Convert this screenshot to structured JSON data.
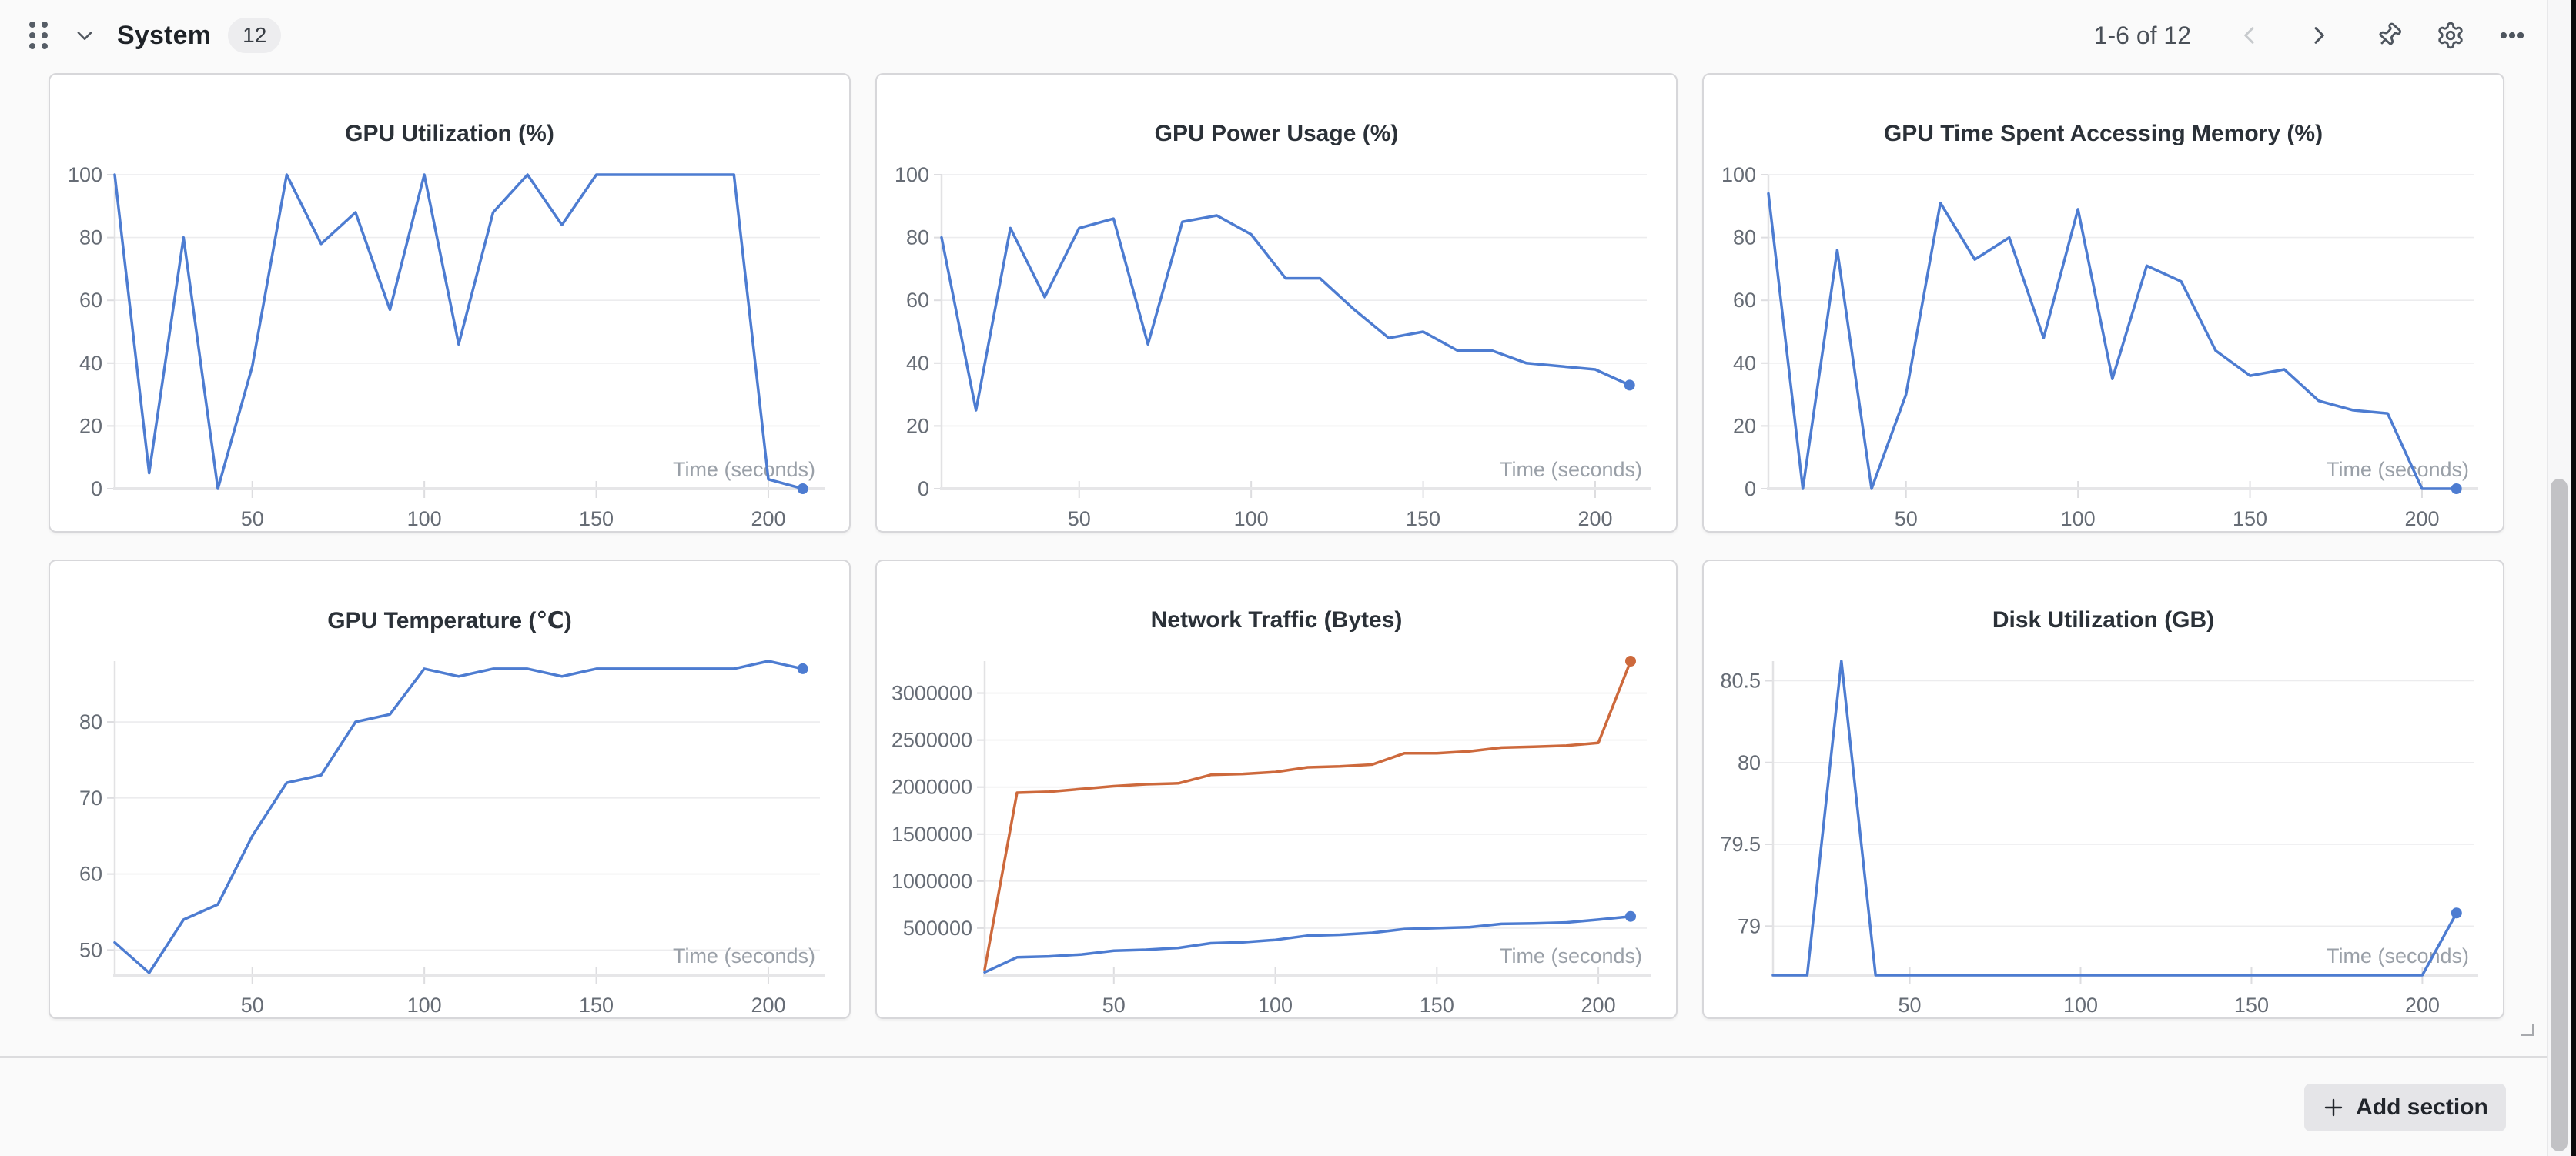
{
  "header": {
    "title": "System",
    "badge_count": "12",
    "pagination": "1-6 of 12"
  },
  "footer": {
    "add_section_label": "Add section"
  },
  "icons": {
    "drag_handle": "grip-vertical",
    "collapse": "chevron-down",
    "prev": "chevron-left",
    "next": "chevron-right",
    "pin": "pushpin",
    "settings": "gear",
    "more": "ellipsis-horizontal",
    "add": "plus",
    "resize": "corner-resize"
  },
  "colors": {
    "page_bg": "#fafafa",
    "card_bg": "#ffffff",
    "card_border": "#d7d7da",
    "accent_blue": "#4d7cd1",
    "accent_orange": "#cd693c",
    "grid_line": "#ececee",
    "tick_label": "#666c75",
    "axis_label": "#9aa0a8",
    "icon_gray": "#4e555e",
    "disabled_gray": "#c7cacd"
  },
  "chart_data": [
    {
      "type": "line",
      "title": "GPU Utilization (%)",
      "xlabel": "Time (seconds)",
      "x": [
        10,
        20,
        30,
        40,
        50,
        60,
        70,
        80,
        90,
        100,
        110,
        120,
        130,
        140,
        150,
        160,
        170,
        180,
        190,
        200,
        210
      ],
      "xticks": [
        50,
        100,
        150,
        200
      ],
      "yticks": [
        0,
        20,
        40,
        60,
        80,
        100
      ],
      "xlim": [
        10,
        215
      ],
      "ylim": [
        0,
        100
      ],
      "margin_left": 84,
      "series": [
        {
          "color": "#4d7cd1",
          "values": [
            100,
            5,
            80,
            0,
            39,
            100,
            78,
            88,
            57,
            100,
            46,
            88,
            100,
            84,
            100,
            100,
            100,
            100,
            100,
            3,
            0
          ]
        }
      ]
    },
    {
      "type": "line",
      "title": "GPU Power Usage (%)",
      "xlabel": "Time (seconds)",
      "x": [
        10,
        20,
        30,
        40,
        50,
        60,
        70,
        80,
        90,
        100,
        110,
        120,
        130,
        140,
        150,
        160,
        170,
        180,
        190,
        200,
        210
      ],
      "xticks": [
        50,
        100,
        150,
        200
      ],
      "yticks": [
        0,
        20,
        40,
        60,
        80,
        100
      ],
      "xlim": [
        10,
        215
      ],
      "ylim": [
        0,
        100
      ],
      "margin_left": 84,
      "series": [
        {
          "color": "#4d7cd1",
          "values": [
            80,
            25,
            83,
            61,
            83,
            86,
            46,
            85,
            87,
            81,
            67,
            67,
            57,
            48,
            50,
            44,
            44,
            40,
            39,
            38,
            33
          ]
        }
      ]
    },
    {
      "type": "line",
      "title": "GPU Time Spent Accessing Memory (%)",
      "xlabel": "Time (seconds)",
      "x": [
        10,
        20,
        30,
        40,
        50,
        60,
        70,
        80,
        90,
        100,
        110,
        120,
        130,
        140,
        150,
        160,
        170,
        180,
        190,
        200,
        210
      ],
      "xticks": [
        50,
        100,
        150,
        200
      ],
      "yticks": [
        0,
        20,
        40,
        60,
        80,
        100
      ],
      "xlim": [
        10,
        215
      ],
      "ylim": [
        0,
        100
      ],
      "margin_left": 84,
      "series": [
        {
          "color": "#4d7cd1",
          "values": [
            94,
            0,
            76,
            0,
            30,
            91,
            73,
            80,
            48,
            89,
            35,
            71,
            66,
            44,
            36,
            38,
            28,
            25,
            24,
            0,
            0
          ]
        }
      ]
    },
    {
      "type": "line",
      "title": "GPU Temperature (℃)",
      "xlabel": "Time (seconds)",
      "x": [
        10,
        20,
        30,
        40,
        50,
        60,
        70,
        80,
        90,
        100,
        110,
        120,
        130,
        140,
        150,
        160,
        170,
        180,
        190,
        200,
        210
      ],
      "xticks": [
        50,
        100,
        150,
        200
      ],
      "yticks": [
        50,
        60,
        70,
        80
      ],
      "xlim": [
        10,
        215
      ],
      "ylim": [
        46.7,
        88
      ],
      "margin_left": 84,
      "series": [
        {
          "color": "#4d7cd1",
          "values": [
            51,
            47,
            54,
            56,
            65,
            72,
            73,
            80,
            81,
            87,
            86,
            87,
            87,
            86,
            87,
            87,
            87,
            87,
            87,
            88,
            87
          ]
        }
      ]
    },
    {
      "type": "line",
      "title": "Network Traffic (Bytes)",
      "xlabel": "Time (seconds)",
      "x": [
        10,
        20,
        30,
        40,
        50,
        60,
        70,
        80,
        90,
        100,
        110,
        120,
        130,
        140,
        150,
        160,
        170,
        180,
        190,
        200,
        210
      ],
      "xticks": [
        50,
        100,
        150,
        200
      ],
      "yticks": [
        500000,
        1000000,
        1500000,
        2000000,
        2500000,
        3000000
      ],
      "xlim": [
        10,
        215
      ],
      "ylim": [
        0,
        3340000
      ],
      "margin_left": 140,
      "series": [
        {
          "color": "#cd693c",
          "values": [
            60000,
            1940000,
            1950000,
            1980000,
            2010000,
            2030000,
            2040000,
            2130000,
            2140000,
            2160000,
            2210000,
            2220000,
            2240000,
            2360000,
            2360000,
            2380000,
            2420000,
            2430000,
            2440000,
            2470000,
            3340000
          ]
        },
        {
          "color": "#4d7cd1",
          "values": [
            30000,
            190000,
            200000,
            220000,
            260000,
            270000,
            290000,
            340000,
            350000,
            375000,
            420000,
            430000,
            450000,
            490000,
            500000,
            510000,
            545000,
            550000,
            560000,
            590000,
            625000
          ]
        }
      ]
    },
    {
      "type": "line",
      "title": "Disk Utilization (GB)",
      "xlabel": "Time (seconds)",
      "x": [
        10,
        20,
        30,
        40,
        50,
        60,
        70,
        80,
        90,
        100,
        110,
        120,
        130,
        140,
        150,
        160,
        170,
        180,
        190,
        200,
        210
      ],
      "xticks": [
        50,
        100,
        150,
        200
      ],
      "yticks": [
        79,
        79.5,
        80,
        80.5
      ],
      "xlim": [
        10,
        215
      ],
      "ylim": [
        78.7,
        80.62
      ],
      "margin_left": 90,
      "series": [
        {
          "color": "#4d7cd1",
          "values": [
            78.7,
            78.7,
            80.62,
            78.7,
            78.7,
            78.7,
            78.7,
            78.7,
            78.7,
            78.7,
            78.7,
            78.7,
            78.7,
            78.7,
            78.7,
            78.7,
            78.7,
            78.7,
            78.7,
            78.7,
            79.08
          ]
        }
      ]
    }
  ]
}
